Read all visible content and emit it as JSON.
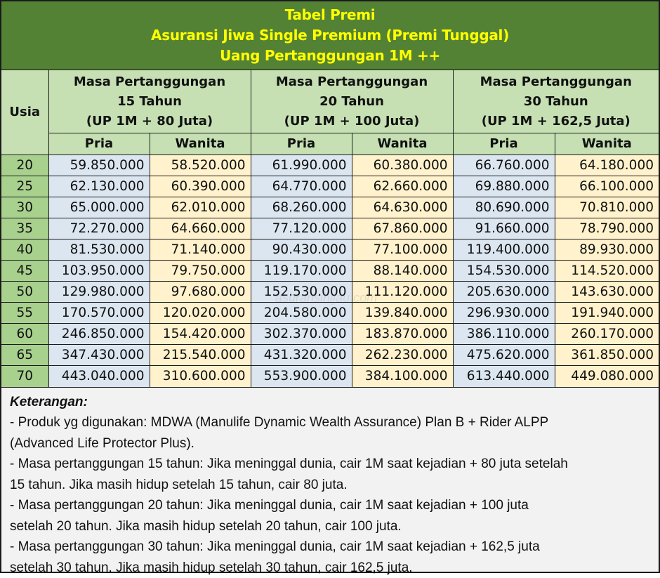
{
  "title": {
    "line1": "Tabel Premi",
    "line2": "Asuransi Jiwa Single Premium (Premi Tunggal)",
    "line3": "Uang Pertanggungan 1M ++"
  },
  "table": {
    "age_header": "Usia",
    "groups": [
      {
        "line1": "Masa Pertanggungan",
        "line2": "15 Tahun",
        "line3": "(UP 1M + 80 Juta)"
      },
      {
        "line1": "Masa Pertanggungan",
        "line2": "20 Tahun",
        "line3": "(UP 1M + 100 Juta)"
      },
      {
        "line1": "Masa Pertanggungan",
        "line2": "30 Tahun",
        "line3": "(UP 1M + 162,5 Juta)"
      }
    ],
    "sub_headers": [
      "Pria",
      "Wanita",
      "Pria",
      "Wanita",
      "Pria",
      "Wanita"
    ],
    "rows": [
      {
        "age": "20",
        "values": [
          "59.850.000",
          "58.520.000",
          "61.990.000",
          "60.380.000",
          "66.760.000",
          "64.180.000"
        ]
      },
      {
        "age": "25",
        "values": [
          "62.130.000",
          "60.390.000",
          "64.770.000",
          "62.660.000",
          "69.880.000",
          "66.100.000"
        ]
      },
      {
        "age": "30",
        "values": [
          "65.000.000",
          "62.010.000",
          "68.260.000",
          "64.630.000",
          "80.690.000",
          "70.810.000"
        ]
      },
      {
        "age": "35",
        "values": [
          "72.270.000",
          "64.660.000",
          "77.120.000",
          "67.860.000",
          "91.660.000",
          "78.790.000"
        ]
      },
      {
        "age": "40",
        "values": [
          "81.530.000",
          "71.140.000",
          "90.430.000",
          "77.100.000",
          "119.400.000",
          "89.930.000"
        ]
      },
      {
        "age": "45",
        "values": [
          "103.950.000",
          "79.750.000",
          "119.170.000",
          "88.140.000",
          "154.530.000",
          "114.520.000"
        ]
      },
      {
        "age": "50",
        "values": [
          "129.980.000",
          "97.680.000",
          "152.530.000",
          "111.120.000",
          "205.630.000",
          "143.630.000"
        ]
      },
      {
        "age": "55",
        "values": [
          "170.570.000",
          "120.020.000",
          "204.580.000",
          "139.840.000",
          "296.930.000",
          "191.940.000"
        ]
      },
      {
        "age": "60",
        "values": [
          "246.850.000",
          "154.420.000",
          "302.370.000",
          "183.870.000",
          "386.110.000",
          "260.170.000"
        ]
      },
      {
        "age": "65",
        "values": [
          "347.430.000",
          "215.540.000",
          "431.320.000",
          "262.230.000",
          "475.620.000",
          "361.850.000"
        ]
      },
      {
        "age": "70",
        "values": [
          "443.040.000",
          "310.600.000",
          "553.900.000",
          "384.100.000",
          "613.440.000",
          "449.080.000"
        ]
      }
    ]
  },
  "notes": {
    "heading": "Keterangan:",
    "lines": [
      "- Produk yg digunakan: MDWA (Manulife Dynamic Wealth Assurance) Plan B + Rider ALPP",
      "(Advanced Life Protector Plus).",
      "- Masa pertanggungan 15 tahun: Jika meninggal dunia, cair 1M saat kejadian + 80 juta setelah",
      "15 tahun. Jika masih hidup setelah 15 tahun, cair 80 juta.",
      "- Masa pertanggungan 20 tahun: Jika meninggal dunia, cair 1M saat kejadian + 100 juta",
      "setelah 20 tahun. Jika masih hidup setelah 20 tahun, cair 100 juta.",
      "- Masa pertanggungan 30 tahun: Jika meninggal dunia, cair 1M saat kejadian + 162,5 juta",
      "setelah 30 tahun. Jika masih hidup setelah 30 tahun, cair 162,5 juta."
    ]
  },
  "watermark": "asuransihijau.com",
  "colors": {
    "title_bg": "#548235",
    "title_text": "#ffff00",
    "header_bg": "#c6e0b4",
    "age_bg": "#a9d18e",
    "pria_bg": "#dce6f1",
    "wanita_bg": "#fff2cc",
    "notes_bg": "#f2f2f2"
  }
}
